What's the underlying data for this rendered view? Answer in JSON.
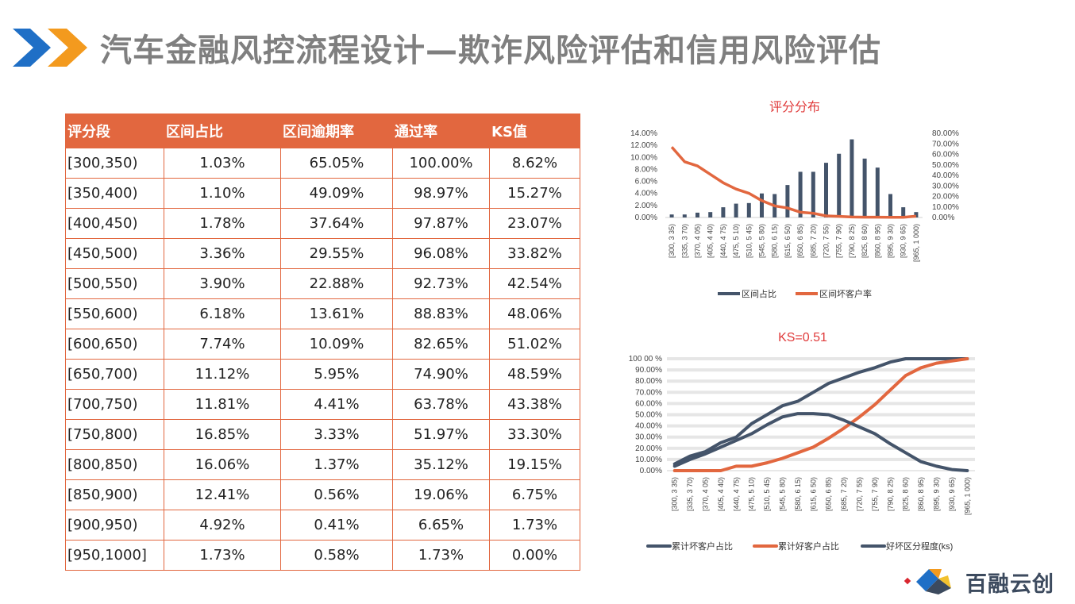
{
  "header": {
    "title": "汽车金融风控流程设计—欺诈风险评估和信用风险评估"
  },
  "table": {
    "headers": [
      "评分段",
      "区间占比",
      "区间逾期率",
      "通过率",
      "KS值"
    ],
    "rows": [
      [
        "[300,350)",
        "1.03%",
        "65.05%",
        "100.00%",
        "8.62%"
      ],
      [
        "[350,400)",
        "1.10%",
        "49.09%",
        "98.97%",
        "15.27%"
      ],
      [
        "[400,450)",
        "1.78%",
        "37.64%",
        "97.87%",
        "23.07%"
      ],
      [
        "[450,500)",
        "3.36%",
        "29.55%",
        "96.08%",
        "33.82%"
      ],
      [
        "[500,550)",
        "3.90%",
        "22.88%",
        "92.73%",
        "42.54%"
      ],
      [
        "[550,600)",
        "6.18%",
        "13.61%",
        "88.83%",
        "48.06%"
      ],
      [
        "[600,650)",
        "7.74%",
        "10.09%",
        "82.65%",
        "51.02%"
      ],
      [
        "[650,700)",
        "11.12%",
        "5.95%",
        "74.90%",
        "48.59%"
      ],
      [
        "[700,750)",
        "11.81%",
        "4.41%",
        "63.78%",
        "43.38%"
      ],
      [
        "[750,800)",
        "16.85%",
        "3.33%",
        "51.97%",
        "33.30%"
      ],
      [
        "[800,850)",
        "16.06%",
        "1.37%",
        "35.12%",
        "19.15%"
      ],
      [
        "[850,900)",
        "12.41%",
        "0.56%",
        "19.06%",
        "6.75%"
      ],
      [
        "[900,950)",
        "4.92%",
        "0.41%",
        "6.65%",
        "1.73%"
      ],
      [
        "[950,1000]",
        "1.73%",
        "0.58%",
        "1.73%",
        "0.00%"
      ]
    ]
  },
  "logo": {
    "text": "百融云创"
  },
  "colors": {
    "accent": "#e2673f",
    "bar": "#44546a",
    "line_orange": "#e2673f",
    "title_red": "#e03b3b",
    "chevron_blue": "#1f6fc6",
    "chevron_orange": "#f39a1e"
  },
  "chart_data": [
    {
      "type": "bar",
      "title": "评分分布",
      "categories": [
        "[300, 3 35)",
        "[335, 3 70)",
        "[370, 4 05)",
        "[405, 4 40)",
        "[440, 4 75)",
        "[475, 5 10)",
        "[510, 5 45)",
        "[545, 5 80)",
        "[580, 6 15)",
        "[615, 6 50)",
        "[650, 6 85)",
        "[685, 7 20)",
        "[720, 7 55)",
        "[755, 7 90)",
        "[790, 8 25)",
        "[825, 8 60)",
        "[860, 8 95)",
        "[895, 9 30)",
        "[930, 9 65)",
        "[965, 1 000)"
      ],
      "y_ticks": [
        "0.00%",
        "2.00%",
        "4.00%",
        "6.00%",
        "8.00%",
        "10.00%",
        "12.00%",
        "14.00%"
      ],
      "y2_ticks": [
        "0.00%",
        "10.00%",
        "20.00%",
        "30.00%",
        "40.00%",
        "50.00%",
        "60.00%",
        "70.00%",
        "80.00%"
      ],
      "ylim": [
        0,
        14
      ],
      "y2lim": [
        0,
        80
      ],
      "series": [
        {
          "name": "区间占比",
          "kind": "bar",
          "axis": "left",
          "color": "#44546a",
          "values": [
            0.5,
            0.5,
            0.8,
            0.9,
            1.7,
            2.3,
            2.4,
            4.0,
            3.9,
            5.4,
            7.6,
            7.6,
            9.1,
            10.6,
            13.0,
            9.8,
            8.3,
            3.9,
            1.7,
            0.9
          ]
        },
        {
          "name": "区间坏客户率",
          "kind": "line",
          "axis": "right",
          "color": "#e2673f",
          "values": [
            67,
            53,
            49,
            41,
            33,
            27,
            23,
            16,
            11,
            9,
            5,
            4,
            1.5,
            1,
            0.5,
            0.3,
            0.3,
            0.2,
            0.2,
            1.2
          ]
        }
      ],
      "legend": "bottom"
    },
    {
      "type": "line",
      "title": "KS=0.51",
      "categories": [
        "[300, 3 35)",
        "[335, 3 70)",
        "[370, 4 05)",
        "[405, 4 40)",
        "[440, 4 75)",
        "[475, 5 10)",
        "[510, 5 45)",
        "[545, 5 80)",
        "[580, 6 15)",
        "[615, 6 50)",
        "[650, 6 85)",
        "[685, 7 20)",
        "[720, 7 55)",
        "[755, 7 90)",
        "[790, 8 25)",
        "[825, 8 60)",
        "[860, 8 95)",
        "[895, 9 30)",
        "[930, 9 65)",
        "[965, 1 000)"
      ],
      "y_ticks": [
        "0.00%",
        "10.00%",
        "20.00%",
        "30.00%",
        "40.00%",
        "50.00%",
        "60.00%",
        "70.00%",
        "80.00%",
        "90.00%",
        "100 00 %"
      ],
      "ylim": [
        0,
        100
      ],
      "series": [
        {
          "name": "累计坏客户占比",
          "color": "#44546a",
          "values": [
            6,
            13,
            17,
            25,
            30,
            42,
            50,
            58,
            62,
            70,
            78,
            83,
            88,
            92,
            97,
            100,
            100,
            100,
            100,
            100
          ]
        },
        {
          "name": "累计好客户占比",
          "color": "#e2673f",
          "values": [
            0,
            0,
            0,
            0,
            4,
            4,
            7,
            11,
            16,
            21,
            29,
            38,
            48,
            59,
            72,
            85,
            92,
            96,
            98,
            100
          ]
        },
        {
          "name": "好坏区分程度(ks)",
          "color": "#44546a",
          "values": [
            4,
            10,
            15,
            21,
            27,
            33,
            41,
            48,
            51,
            51,
            50,
            45,
            39,
            33,
            24,
            16,
            8,
            4,
            1,
            0
          ]
        }
      ],
      "legend": "bottom"
    }
  ]
}
